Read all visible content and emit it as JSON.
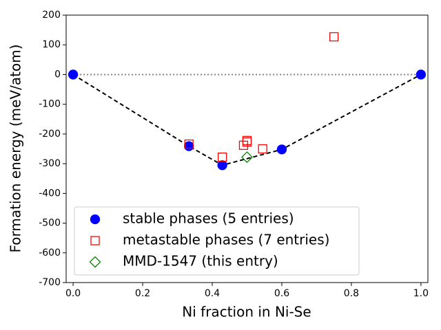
{
  "chart_data": {
    "type": "scatter",
    "xlabel": "Ni fraction in Ni-Se",
    "ylabel": "Formation energy (meV/atom)",
    "xlim": [
      -0.02,
      1.02
    ],
    "ylim": [
      -700,
      200
    ],
    "xticks": [
      {
        "value": 0,
        "label": "0.0"
      },
      0.2,
      0.4,
      0.6,
      0.8,
      {
        "value": 1,
        "label": "1.0"
      }
    ],
    "yticks": [
      -700,
      -600,
      -500,
      -400,
      -300,
      -200,
      -100,
      0,
      100,
      200
    ],
    "reference_line_y": 0,
    "hull": true,
    "legend": "lower left",
    "series": [
      {
        "name": "stable phases (5 entries)",
        "color": "#0000ff",
        "marker": "circle",
        "filled": true,
        "x": [
          0,
          0.333,
          0.429,
          0.6,
          1
        ],
        "values": [
          0,
          -241,
          -305,
          -252,
          0
        ]
      },
      {
        "name": "metastable phases (7 entries)",
        "color": "#ff0000",
        "marker": "square",
        "filled": false,
        "x": [
          0.333,
          0.429,
          0.49,
          0.5,
          0.5,
          0.545,
          0.75
        ],
        "values": [
          -234,
          -278,
          -238,
          -227,
          -222,
          -250,
          127
        ]
      },
      {
        "name": "MMD-1547 (this entry)",
        "color": "#008000",
        "marker": "diamond",
        "filled": false,
        "x": [
          0.5
        ],
        "values": [
          -278
        ]
      }
    ]
  }
}
